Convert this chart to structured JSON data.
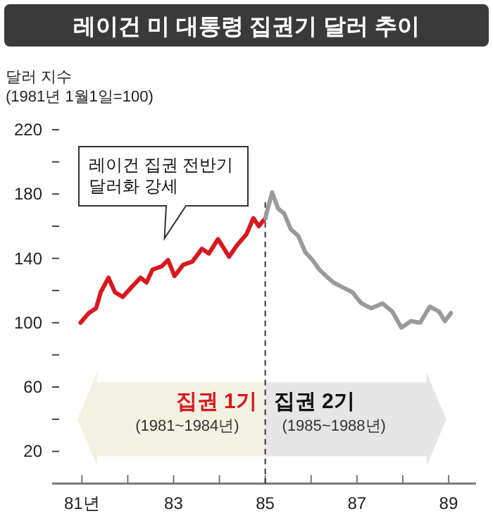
{
  "chart_data": {
    "type": "line",
    "title": "레이건 미 대통령 집권기 달러 추이",
    "ylabel": "달러 지수\n(1981년 1월1일=100)",
    "xlim": [
      80.35,
      89.6
    ],
    "ylim": [
      0,
      220
    ],
    "xticks": [
      {
        "value": 81,
        "label": "81년"
      },
      {
        "value": 82,
        "label": null
      },
      83,
      {
        "value": 84,
        "label": null
      },
      85,
      {
        "value": 86,
        "label": null
      },
      87,
      {
        "value": 88,
        "label": null
      },
      89
    ],
    "yticks": [
      20,
      {
        "value": 40,
        "label": null
      },
      60,
      {
        "value": 80,
        "label": null
      },
      100,
      {
        "value": 120,
        "label": null
      },
      140,
      {
        "value": 160,
        "label": null
      },
      180,
      {
        "value": 200,
        "label": null
      },
      220
    ],
    "series": [
      {
        "color": "#d7191f",
        "x": [
          80.97,
          81.15,
          81.31,
          81.41,
          81.58,
          81.72,
          81.89,
          82.08,
          82.28,
          82.41,
          82.54,
          82.74,
          82.88,
          83.02,
          83.21,
          83.41,
          83.62,
          83.77,
          83.97,
          84.21,
          84.38,
          84.59,
          84.74,
          84.86,
          85.0
        ],
        "values": [
          100,
          106,
          109,
          119,
          128,
          119,
          116,
          122,
          128,
          125,
          133,
          135,
          139,
          129,
          136,
          138,
          146,
          143,
          152,
          141,
          148,
          155,
          165,
          160,
          165
        ]
      },
      {
        "color": "#9a9a9a",
        "x": [
          85.0,
          85.15,
          85.28,
          85.41,
          85.56,
          85.72,
          85.87,
          86.03,
          86.18,
          86.33,
          86.49,
          86.69,
          86.9,
          87.1,
          87.31,
          87.56,
          87.77,
          87.97,
          88.18,
          88.38,
          88.59,
          88.79,
          88.92,
          89.05
        ],
        "values": [
          165,
          181,
          171,
          168,
          158,
          154,
          144,
          139,
          133,
          129,
          125,
          122,
          119,
          112,
          109,
          112,
          107,
          97,
          101,
          100,
          110,
          107,
          101,
          106
        ]
      }
    ],
    "ref_lines": [
      {
        "axis": "x",
        "value": 85,
        "color": "#333333",
        "line_style": "dashed"
      }
    ],
    "annotations": [
      "레이건 집권 전반기\n달러화 강세",
      "집권 1기",
      "(1981~1984년)",
      "집권 2기",
      "(1985~1988년)"
    ],
    "line_style": "solid",
    "marker": "none",
    "grid": false
  }
}
